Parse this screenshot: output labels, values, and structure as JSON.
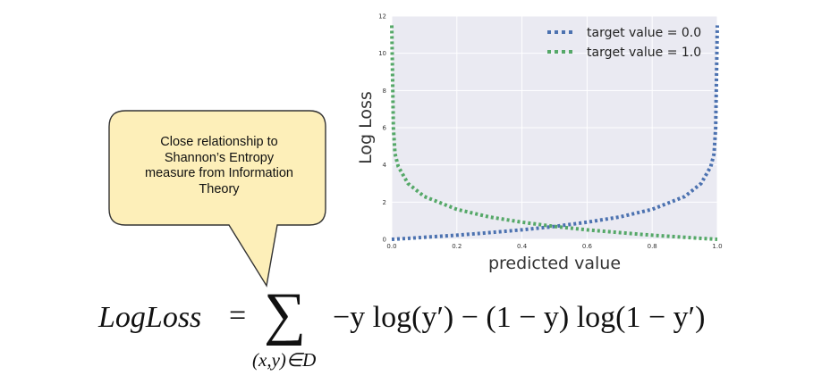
{
  "callout": {
    "lines": [
      "Close relationship to",
      "Shannon’s Entropy",
      "measure from Information",
      "Theory"
    ]
  },
  "formula": {
    "lhs": "LogLoss",
    "equals": "=",
    "sigma": "∑",
    "subscript": "(x,y)∈D",
    "rhs": "−y log(y′) − (1 − y) log(1 − y′)"
  },
  "colors": {
    "plot_background": "#eaeaf2",
    "series_0": "#4c72b0",
    "series_1": "#55a868",
    "callout_fill": "#fdefb9"
  },
  "chart_data": {
    "type": "line",
    "xlabel": "predicted value",
    "ylabel": "Log Loss",
    "xlim": [
      0.0,
      1.0
    ],
    "ylim": [
      0,
      12
    ],
    "x_ticks": [
      "0.0",
      "0.2",
      "0.4",
      "0.6",
      "0.8",
      "1.0"
    ],
    "y_ticks": [
      "0",
      "2",
      "4",
      "6",
      "8",
      "10",
      "12"
    ],
    "legend_position": "top-right",
    "grid": true,
    "series": [
      {
        "name": "target value = 0.0",
        "line_style": "dotted",
        "x": [
          0.0,
          0.05,
          0.1,
          0.2,
          0.3,
          0.4,
          0.5,
          0.6,
          0.7,
          0.8,
          0.9,
          0.95,
          0.98,
          0.99,
          0.995,
          1.0
        ],
        "y": [
          0.0,
          0.05,
          0.11,
          0.22,
          0.36,
          0.51,
          0.69,
          0.92,
          1.2,
          1.61,
          2.3,
          3.0,
          3.91,
          4.6,
          6.0,
          11.5
        ]
      },
      {
        "name": "target value = 1.0",
        "line_style": "dotted",
        "x": [
          0.0,
          0.005,
          0.01,
          0.02,
          0.05,
          0.1,
          0.2,
          0.3,
          0.4,
          0.5,
          0.6,
          0.7,
          0.8,
          0.9,
          0.95,
          1.0
        ],
        "y": [
          11.5,
          6.0,
          4.6,
          3.91,
          3.0,
          2.3,
          1.61,
          1.2,
          0.92,
          0.69,
          0.51,
          0.36,
          0.22,
          0.11,
          0.05,
          0.0
        ]
      }
    ]
  }
}
